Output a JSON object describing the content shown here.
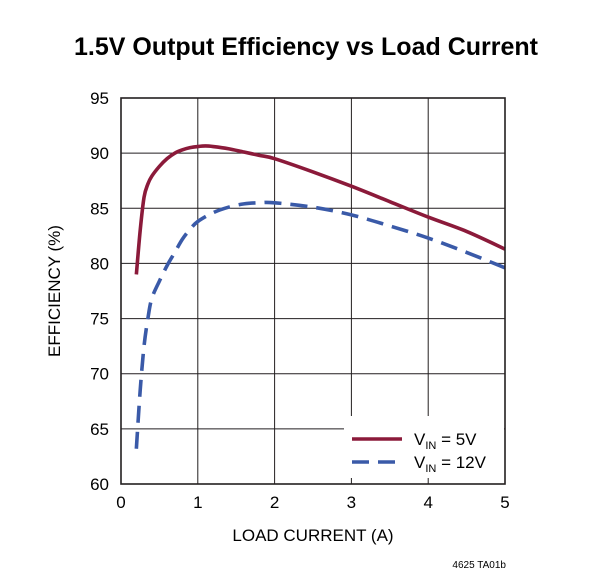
{
  "chart_data": {
    "type": "line",
    "title": "1.5V Output Efficiency vs Load Current",
    "xlabel": "LOAD CURRENT (A)",
    "ylabel": "EFFICIENCY (%)",
    "xlim": [
      0,
      5
    ],
    "ylim": [
      60,
      95
    ],
    "x_ticks": [
      "0",
      "1",
      "2",
      "3",
      "4",
      "5"
    ],
    "y_ticks": [
      "60",
      "65",
      "70",
      "75",
      "80",
      "85",
      "90",
      "95"
    ],
    "grid": true,
    "legend_position": "bottom-right",
    "series": [
      {
        "name": "VIN = 5V",
        "legend_main": "V",
        "legend_sub": "IN",
        "legend_rest": " = 5V",
        "color": "#8b1a3a",
        "style": "solid",
        "x": [
          0.2,
          0.25,
          0.3,
          0.35,
          0.4,
          0.5,
          0.6,
          0.7,
          0.8,
          0.9,
          1.0,
          1.1,
          1.2,
          1.4,
          1.6,
          1.8,
          2.0,
          2.5,
          3.0,
          3.5,
          4.0,
          4.5,
          5.0
        ],
        "y": [
          79.0,
          83.0,
          86.0,
          87.2,
          87.9,
          88.8,
          89.5,
          90.0,
          90.3,
          90.5,
          90.6,
          90.65,
          90.6,
          90.4,
          90.1,
          89.8,
          89.5,
          88.3,
          87.0,
          85.6,
          84.2,
          82.9,
          81.3
        ]
      },
      {
        "name": "VIN = 12V",
        "legend_main": "V",
        "legend_sub": "IN",
        "legend_rest": " = 12V",
        "color": "#3a5aa8",
        "style": "dashed",
        "x": [
          0.2,
          0.25,
          0.3,
          0.35,
          0.4,
          0.5,
          0.6,
          0.7,
          0.8,
          0.9,
          1.0,
          1.2,
          1.4,
          1.6,
          1.8,
          2.0,
          2.5,
          3.0,
          3.5,
          4.0,
          4.5,
          5.0
        ],
        "y": [
          63.2,
          68.5,
          72.5,
          75.0,
          76.8,
          78.4,
          79.8,
          81.0,
          82.2,
          83.1,
          83.8,
          84.6,
          85.1,
          85.4,
          85.5,
          85.5,
          85.1,
          84.4,
          83.4,
          82.3,
          81.0,
          79.6
        ]
      }
    ]
  },
  "figure_code": "4625 TA01b"
}
